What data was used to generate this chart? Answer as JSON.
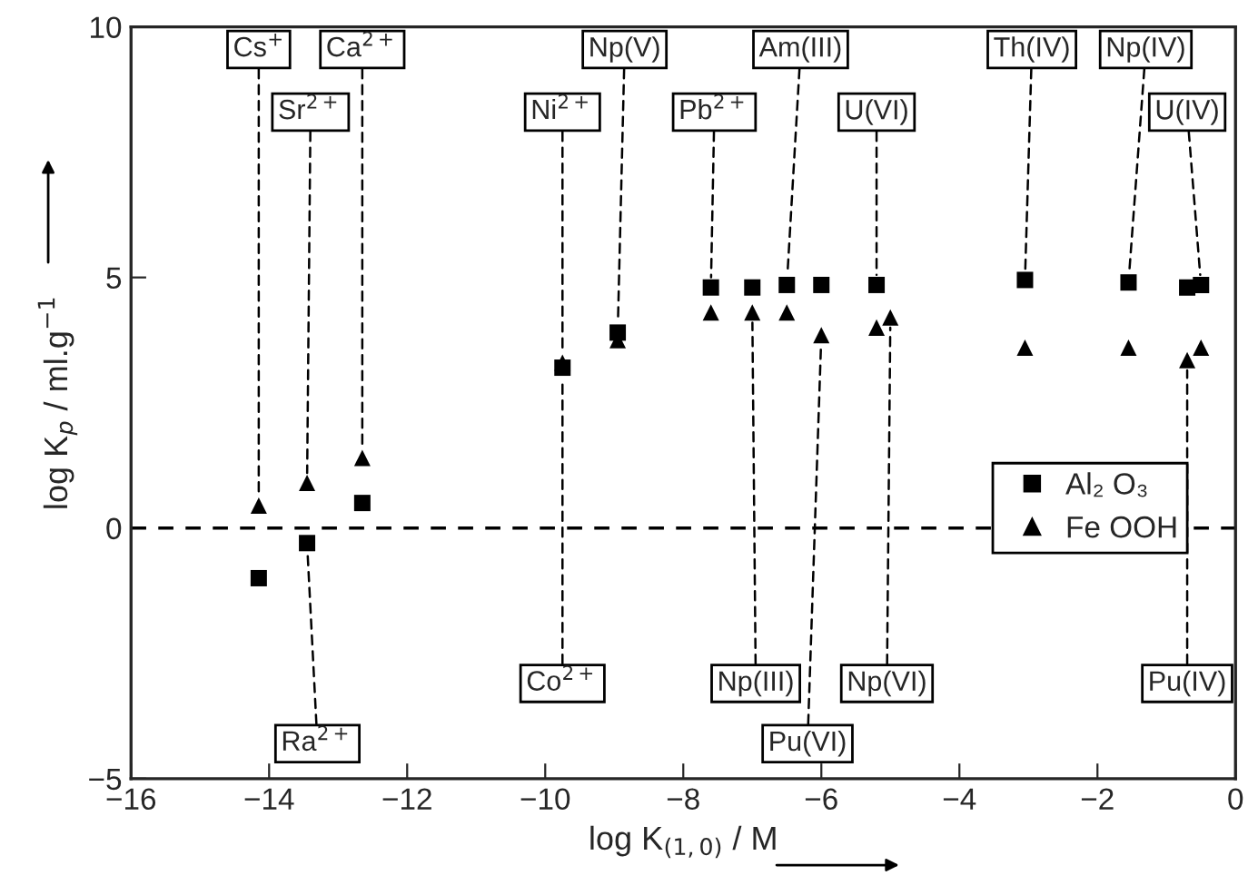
{
  "chart_data": {
    "type": "scatter",
    "xlabel": "log K$_{(1,0)}$ / M",
    "ylabel": "log K$_{p}$ / ml.g$^{−1}$",
    "xlim": [
      -16,
      0
    ],
    "xticks": [
      -16,
      -14,
      -12,
      -10,
      -8,
      -6,
      -4,
      -2,
      0
    ],
    "ylim": [
      -5,
      10
    ],
    "yticks": [
      -5,
      0,
      5,
      10
    ],
    "grid": false,
    "legend": "right",
    "ref_lines": [
      {
        "axis": "y",
        "value": 0,
        "color": "#000000",
        "line_style": "dashed"
      }
    ],
    "series": [
      {
        "name": "Al₂ O₃",
        "color": "#000000",
        "marker": "square",
        "x": [
          -14.15,
          -13.45,
          -12.65,
          -9.75,
          -8.95,
          -7.6,
          -7.0,
          -6.5,
          -6.0,
          -5.2,
          -3.05,
          -1.55,
          -0.7,
          -0.5
        ],
        "values": [
          -1.0,
          -0.3,
          0.5,
          3.2,
          3.9,
          4.8,
          4.8,
          4.85,
          4.85,
          4.85,
          4.95,
          4.9,
          4.8,
          4.85
        ]
      },
      {
        "name": "Fe OOH",
        "color": "#000000",
        "marker": "triangle",
        "x": [
          -14.15,
          -13.45,
          -12.65,
          -9.75,
          -8.95,
          -7.6,
          -7.0,
          -6.5,
          -6.0,
          -5.2,
          -5.0,
          -3.05,
          -1.55,
          -0.7,
          -0.5
        ],
        "values": [
          0.45,
          0.9,
          1.4,
          3.3,
          3.75,
          4.3,
          4.3,
          4.3,
          3.85,
          4.0,
          4.2,
          3.6,
          3.6,
          3.35,
          3.6
        ]
      }
    ],
    "annotations": [
      {
        "text": "Cs$^{+}$",
        "x": -14.15,
        "y": 0.45
      },
      {
        "text": "Ca$^{2+}$",
        "x": -12.65,
        "y": 1.4
      },
      {
        "text": "Sr$^{2+}$",
        "x": -13.45,
        "y": 0.9
      },
      {
        "text": "Np(V)",
        "x": -8.95,
        "y": 3.9
      },
      {
        "text": "Ni$^{2+}$",
        "x": -9.75,
        "y": 3.3
      },
      {
        "text": "Am(III)",
        "x": -6.5,
        "y": 4.85
      },
      {
        "text": "Pb$^{2+}$",
        "x": -7.6,
        "y": 4.8
      },
      {
        "text": "U(VI)",
        "x": -5.2,
        "y": 4.85
      },
      {
        "text": "Th(IV)",
        "x": -3.05,
        "y": 4.95
      },
      {
        "text": "Np(IV)",
        "x": -1.55,
        "y": 4.9
      },
      {
        "text": "U(IV)",
        "x": -0.5,
        "y": 4.85
      },
      {
        "text": "Co$^{2+}$",
        "x": -9.75,
        "y": 3.2
      },
      {
        "text": "Np(III)",
        "x": -7.0,
        "y": 4.3
      },
      {
        "text": "Np(VI)",
        "x": -5.0,
        "y": 4.2
      },
      {
        "text": "Pu(IV)",
        "x": -0.7,
        "y": 3.35
      },
      {
        "text": "Ra$^{2+}$",
        "x": -13.45,
        "y": -0.3
      },
      {
        "text": "Pu(VI)",
        "x": -6.0,
        "y": 3.85
      }
    ]
  }
}
